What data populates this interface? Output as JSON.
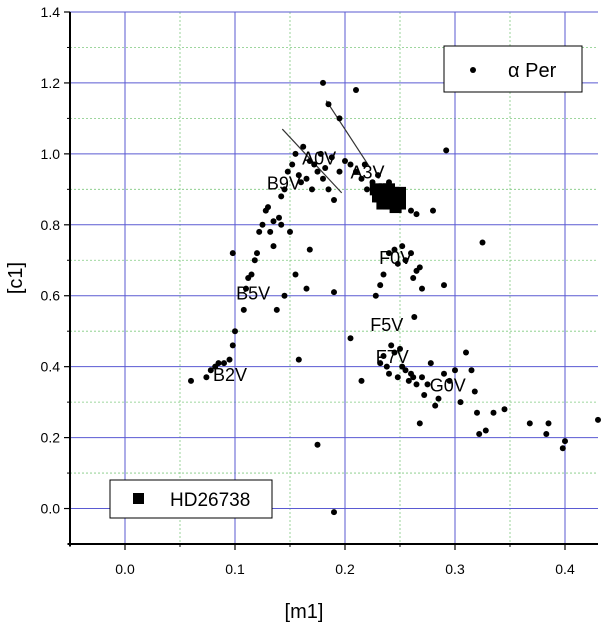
{
  "chart_data": {
    "type": "scatter",
    "xlabel": "[m1]",
    "ylabel": "[c1]",
    "xlim": [
      -0.05,
      0.43
    ],
    "ylim": [
      -0.1,
      1.4
    ],
    "x_ticks": [
      0.0,
      0.1,
      0.2,
      0.3,
      0.4
    ],
    "x_tick_labels": [
      "0.0",
      "0.1",
      "0.2",
      "0.3",
      "0.4"
    ],
    "y_ticks": [
      0.0,
      0.2,
      0.4,
      0.6,
      0.8,
      1.0,
      1.2,
      1.4
    ],
    "y_tick_labels": [
      "0.0",
      "0.2",
      "0.4",
      "0.6",
      "0.8",
      "1.0",
      "1.2",
      "1.4"
    ],
    "grid": true,
    "series": [
      {
        "name": "α Per",
        "marker": "dot",
        "points": [
          [
            0.06,
            0.36
          ],
          [
            0.074,
            0.37
          ],
          [
            0.078,
            0.39
          ],
          [
            0.082,
            0.4
          ],
          [
            0.085,
            0.41
          ],
          [
            0.09,
            0.41
          ],
          [
            0.095,
            0.42
          ],
          [
            0.098,
            0.46
          ],
          [
            0.1,
            0.5
          ],
          [
            0.098,
            0.72
          ],
          [
            0.11,
            0.62
          ],
          [
            0.112,
            0.65
          ],
          [
            0.115,
            0.66
          ],
          [
            0.108,
            0.56
          ],
          [
            0.118,
            0.7
          ],
          [
            0.12,
            0.72
          ],
          [
            0.122,
            0.78
          ],
          [
            0.125,
            0.8
          ],
          [
            0.128,
            0.84
          ],
          [
            0.13,
            0.85
          ],
          [
            0.132,
            0.78
          ],
          [
            0.135,
            0.74
          ],
          [
            0.14,
            0.82
          ],
          [
            0.142,
            0.88
          ],
          [
            0.145,
            0.9
          ],
          [
            0.148,
            0.95
          ],
          [
            0.152,
            0.97
          ],
          [
            0.155,
            1.0
          ],
          [
            0.158,
            0.94
          ],
          [
            0.16,
            0.92
          ],
          [
            0.162,
            1.02
          ],
          [
            0.165,
            0.93
          ],
          [
            0.168,
            0.98
          ],
          [
            0.17,
            0.9
          ],
          [
            0.172,
            0.97
          ],
          [
            0.175,
            0.95
          ],
          [
            0.178,
            1.0
          ],
          [
            0.18,
            0.93
          ],
          [
            0.182,
            0.96
          ],
          [
            0.185,
            0.9
          ],
          [
            0.188,
            0.99
          ],
          [
            0.19,
            0.87
          ],
          [
            0.195,
            0.95
          ],
          [
            0.2,
            0.98
          ],
          [
            0.205,
            0.97
          ],
          [
            0.21,
            0.95
          ],
          [
            0.215,
            0.93
          ],
          [
            0.218,
            0.97
          ],
          [
            0.22,
            0.9
          ],
          [
            0.225,
            0.92
          ],
          [
            0.23,
            0.94
          ],
          [
            0.24,
            0.92
          ],
          [
            0.245,
            0.86
          ],
          [
            0.25,
            0.85
          ],
          [
            0.26,
            0.84
          ],
          [
            0.265,
            0.83
          ],
          [
            0.28,
            0.84
          ],
          [
            0.29,
            0.63
          ],
          [
            0.292,
            1.01
          ],
          [
            0.325,
            0.75
          ],
          [
            0.18,
            1.2
          ],
          [
            0.185,
            1.14
          ],
          [
            0.195,
            1.1
          ],
          [
            0.21,
            1.18
          ],
          [
            0.168,
            0.73
          ],
          [
            0.155,
            0.66
          ],
          [
            0.145,
            0.6
          ],
          [
            0.138,
            0.56
          ],
          [
            0.165,
            0.62
          ],
          [
            0.15,
            0.78
          ],
          [
            0.142,
            0.8
          ],
          [
            0.135,
            0.81
          ],
          [
            0.158,
            0.42
          ],
          [
            0.175,
            0.18
          ],
          [
            0.19,
            0.61
          ],
          [
            0.19,
            -0.01
          ],
          [
            0.205,
            0.48
          ],
          [
            0.215,
            0.36
          ],
          [
            0.228,
            0.6
          ],
          [
            0.232,
            0.63
          ],
          [
            0.235,
            0.66
          ],
          [
            0.24,
            0.72
          ],
          [
            0.245,
            0.73
          ],
          [
            0.248,
            0.69
          ],
          [
            0.252,
            0.74
          ],
          [
            0.255,
            0.7
          ],
          [
            0.26,
            0.72
          ],
          [
            0.262,
            0.65
          ],
          [
            0.265,
            0.67
          ],
          [
            0.268,
            0.68
          ],
          [
            0.263,
            0.54
          ],
          [
            0.27,
            0.62
          ],
          [
            0.232,
            0.41
          ],
          [
            0.235,
            0.43
          ],
          [
            0.238,
            0.4
          ],
          [
            0.24,
            0.38
          ],
          [
            0.242,
            0.46
          ],
          [
            0.245,
            0.44
          ],
          [
            0.248,
            0.37
          ],
          [
            0.25,
            0.45
          ],
          [
            0.252,
            0.4
          ],
          [
            0.255,
            0.39
          ],
          [
            0.258,
            0.36
          ],
          [
            0.26,
            0.38
          ],
          [
            0.262,
            0.37
          ],
          [
            0.265,
            0.35
          ],
          [
            0.27,
            0.37
          ],
          [
            0.272,
            0.32
          ],
          [
            0.275,
            0.35
          ],
          [
            0.278,
            0.41
          ],
          [
            0.282,
            0.29
          ],
          [
            0.285,
            0.31
          ],
          [
            0.29,
            0.38
          ],
          [
            0.295,
            0.36
          ],
          [
            0.3,
            0.39
          ],
          [
            0.305,
            0.3
          ],
          [
            0.31,
            0.44
          ],
          [
            0.315,
            0.39
          ],
          [
            0.318,
            0.33
          ],
          [
            0.32,
            0.27
          ],
          [
            0.322,
            0.21
          ],
          [
            0.328,
            0.22
          ],
          [
            0.335,
            0.27
          ],
          [
            0.345,
            0.28
          ],
          [
            0.368,
            0.24
          ],
          [
            0.383,
            0.21
          ],
          [
            0.385,
            0.24
          ],
          [
            0.398,
            0.17
          ],
          [
            0.4,
            0.19
          ],
          [
            0.43,
            0.25
          ],
          [
            0.268,
            0.24
          ]
        ]
      },
      {
        "name": "HD26738",
        "marker": "square",
        "points": [
          [
            0.228,
            0.9
          ],
          [
            0.232,
            0.88
          ],
          [
            0.235,
            0.87
          ],
          [
            0.238,
            0.89
          ],
          [
            0.24,
            0.86
          ],
          [
            0.242,
            0.88
          ],
          [
            0.245,
            0.87
          ],
          [
            0.248,
            0.88
          ],
          [
            0.25,
            0.86
          ],
          [
            0.236,
            0.9
          ],
          [
            0.244,
            0.89
          ],
          [
            0.23,
            0.88
          ],
          [
            0.234,
            0.86
          ],
          [
            0.24,
            0.9
          ],
          [
            0.246,
            0.85
          ],
          [
            0.25,
            0.89
          ]
        ]
      }
    ],
    "annotations": [
      {
        "text": "A0V",
        "x": 0.161,
        "y": 0.97
      },
      {
        "text": "A3V",
        "x": 0.205,
        "y": 0.93
      },
      {
        "text": "B9V",
        "x": 0.129,
        "y": 0.9
      },
      {
        "text": "B5V",
        "x": 0.101,
        "y": 0.59
      },
      {
        "text": "B2V",
        "x": 0.08,
        "y": 0.36
      },
      {
        "text": "F0V",
        "x": 0.231,
        "y": 0.69
      },
      {
        "text": "F5V",
        "x": 0.223,
        "y": 0.5
      },
      {
        "text": "F7V",
        "x": 0.228,
        "y": 0.41
      },
      {
        "text": "G0V",
        "x": 0.277,
        "y": 0.33
      }
    ],
    "lines": [
      {
        "x": [
          0.143,
          0.197
        ],
        "y": [
          1.07,
          0.89
        ]
      },
      {
        "x": [
          0.183,
          0.223
        ],
        "y": [
          1.15,
          0.96
        ]
      }
    ],
    "legend_top": {
      "position": "top-right",
      "label": "α Per",
      "marker": "dot"
    },
    "legend_bottom": {
      "position": "bottom-left",
      "label": "HD26738",
      "marker": "square"
    }
  }
}
